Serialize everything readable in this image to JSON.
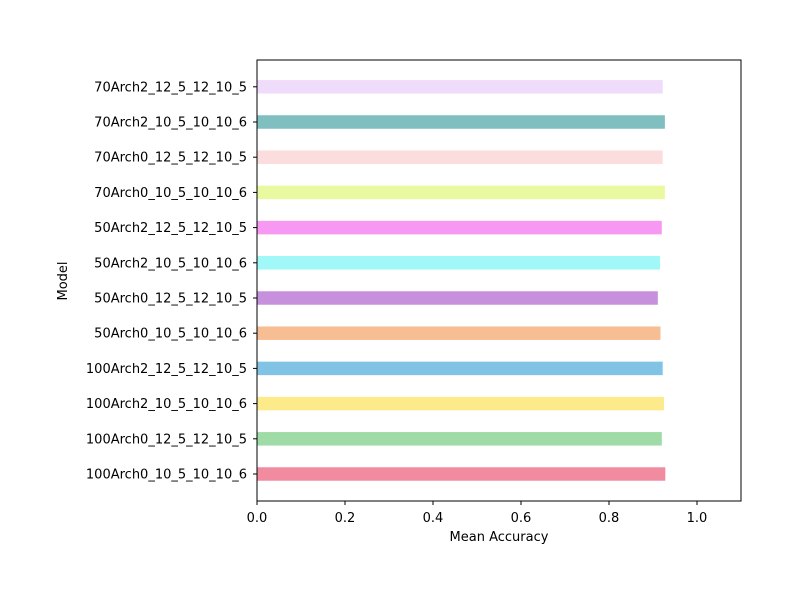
{
  "chart_data": {
    "type": "bar",
    "orientation": "horizontal",
    "xlabel": "Mean Accuracy",
    "ylabel": "Model",
    "xlim": [
      0.0,
      1.1
    ],
    "xticks": [
      0.0,
      0.2,
      0.4,
      0.6,
      0.8,
      1.0
    ],
    "xtick_labels": [
      "0.0",
      "0.2",
      "0.4",
      "0.6",
      "0.8",
      "1.0"
    ],
    "grid": false,
    "categories": [
      "100Arch0_10_5_10_10_6",
      "100Arch0_12_5_12_10_5",
      "100Arch2_10_5_10_10_6",
      "100Arch2_12_5_12_10_5",
      "50Arch0_10_5_10_10_6",
      "50Arch0_12_5_12_10_5",
      "50Arch2_10_5_10_10_6",
      "50Arch2_12_5_12_10_5",
      "70Arch0_10_5_10_10_6",
      "70Arch0_12_5_12_10_5",
      "70Arch2_10_5_10_10_6",
      "70Arch2_12_5_12_10_5"
    ],
    "values": [
      0.928,
      0.92,
      0.925,
      0.922,
      0.917,
      0.911,
      0.916,
      0.92,
      0.927,
      0.922,
      0.927,
      0.922
    ],
    "colors": [
      "#f08ba0",
      "#9fdba6",
      "#fcea8b",
      "#80c3e4",
      "#f7be94",
      "#c690dd",
      "#a1f8f8",
      "#f799f3",
      "#e9f99f",
      "#fcdddd",
      "#7fbfbf",
      "#efdcfb"
    ]
  }
}
